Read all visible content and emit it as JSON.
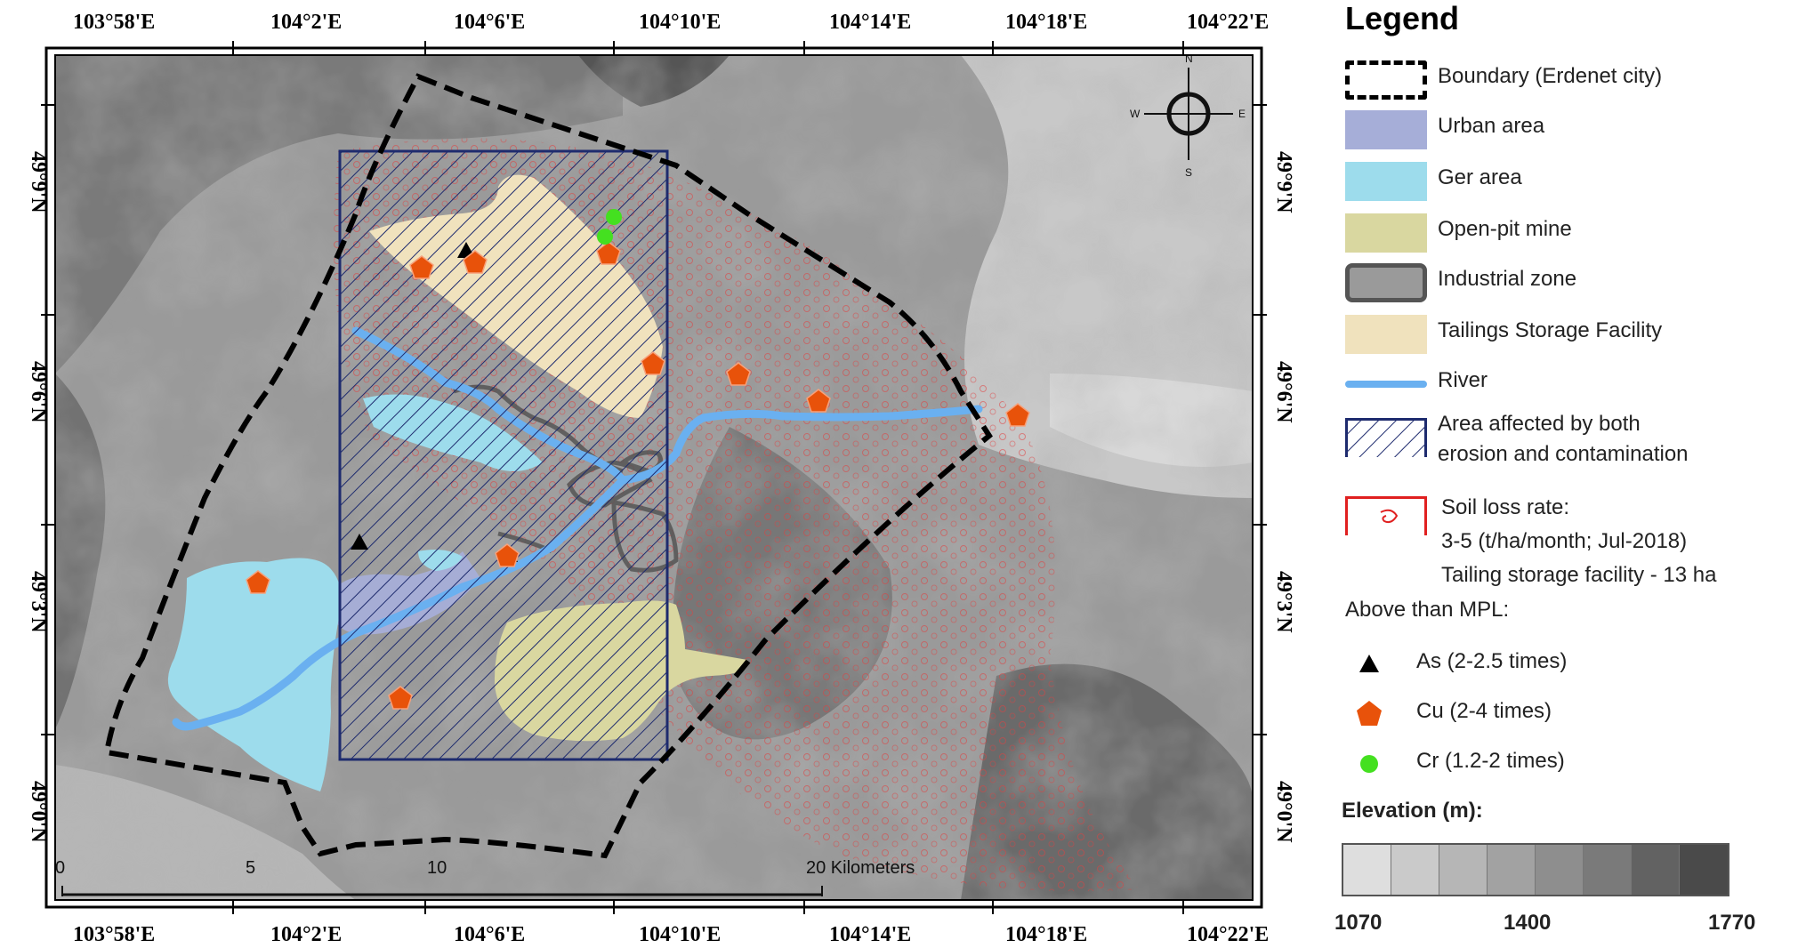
{
  "map": {
    "top_lon_labels": [
      "103°58'E",
      "104°2'E",
      "104°6'E",
      "104°10'E",
      "104°14'E",
      "104°18'E",
      "104°22'E"
    ],
    "bottom_lon_labels": [
      "103°58'E",
      "104°2'E",
      "104°6'E",
      "104°10'E",
      "104°14'E",
      "104°18'E",
      "104°22'E"
    ],
    "left_lat_labels": [
      "49°9'N",
      "49°6'N",
      "49°3'N",
      "49°0'N"
    ],
    "right_lat_labels": [
      "49°9'N",
      "49°6'N",
      "49°3'N",
      "49°0'N"
    ],
    "compass": {
      "n": "N",
      "s": "S",
      "e": "E",
      "w": "W"
    },
    "scale_bar": {
      "ticks": [
        "0",
        "5",
        "10",
        "20 Kilometers"
      ]
    },
    "colors": {
      "urban": "#a6aed8",
      "ger": "#9ddcec",
      "mine": "#d9d7a0",
      "tailings": "#f0e2bd",
      "river": "#6ab0f0",
      "hatch": "#1e2b6e",
      "boundary": "#000000",
      "cu": "#e8520a",
      "as": "#000000",
      "cr": "#44e020",
      "soil_loss": "#e02020"
    }
  },
  "legend": {
    "title": "Legend",
    "items": [
      {
        "key": "boundary",
        "label": "Boundary (Erdenet city)"
      },
      {
        "key": "urban",
        "label": "Urban area"
      },
      {
        "key": "ger",
        "label": "Ger area"
      },
      {
        "key": "mine",
        "label": "Open-pit mine"
      },
      {
        "key": "industrial",
        "label": "Industrial zone"
      },
      {
        "key": "tailings",
        "label": "Tailings Storage Facility"
      },
      {
        "key": "river",
        "label": "River"
      }
    ],
    "affected": {
      "line1": "Area affected by both",
      "line2": "erosion and contamination"
    },
    "soil_loss": {
      "line1": "Soil loss rate:",
      "line2": "3-5 (t/ha/month; Jul-2018)",
      "line3": "Tailing storage facility - 13  ha"
    },
    "mpl_header": "Above than MPL:",
    "mpl": [
      {
        "key": "as",
        "label": "As (2-2.5 times)"
      },
      {
        "key": "cu",
        "label": "Cu (2-4 times)"
      },
      {
        "key": "cr",
        "label": "Cr (1.2-2 times)"
      }
    ],
    "elevation": {
      "title": "Elevation (m):",
      "min": "1070",
      "mid": "1400",
      "max": "1770",
      "ramp": [
        "#dedede",
        "#cacaca",
        "#b6b6b6",
        "#a2a2a2",
        "#8e8e8e",
        "#7a7a7a",
        "#626262",
        "#4a4a4a"
      ]
    }
  }
}
